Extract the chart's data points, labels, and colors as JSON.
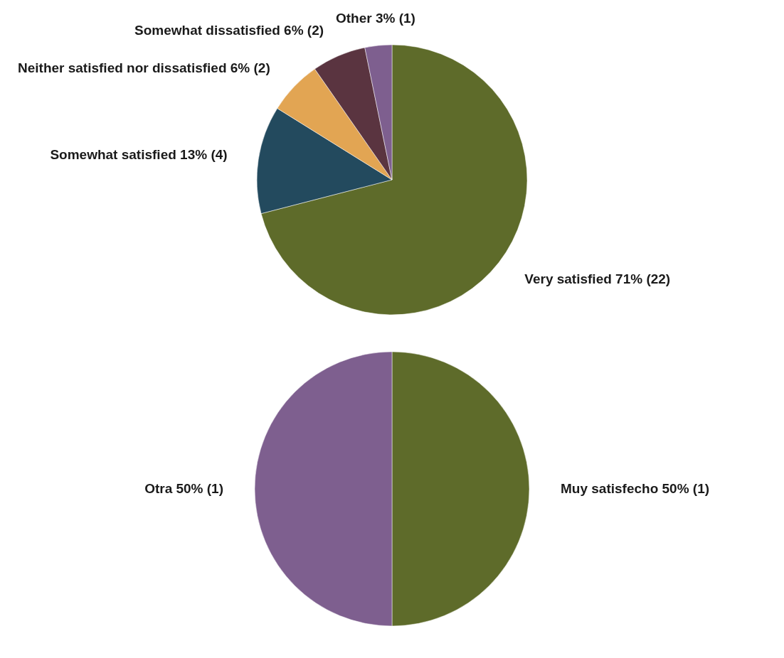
{
  "chart_data": [
    {
      "type": "pie",
      "categories": [
        "Very satisfied",
        "Somewhat satisfied",
        "Neither satisfied nor dissatisfied",
        "Somewhat dissatisfied",
        "Other"
      ],
      "values": [
        22,
        4,
        2,
        2,
        1
      ],
      "value_labels": [
        "71% (22)",
        "13% (4)",
        "6% (2)",
        "6% (2)",
        "3% (1)"
      ],
      "colors": [
        "#5e6b2a",
        "#234a5e",
        "#e2a553",
        "#5a3440",
        "#7e5f8f"
      ]
    },
    {
      "type": "pie",
      "categories": [
        "Muy satisfecho",
        "Otra"
      ],
      "values": [
        1,
        1
      ],
      "value_labels": [
        "50% (1)",
        "50% (1)"
      ],
      "colors": [
        "#5e6b2a",
        "#7e5f8f"
      ]
    }
  ]
}
